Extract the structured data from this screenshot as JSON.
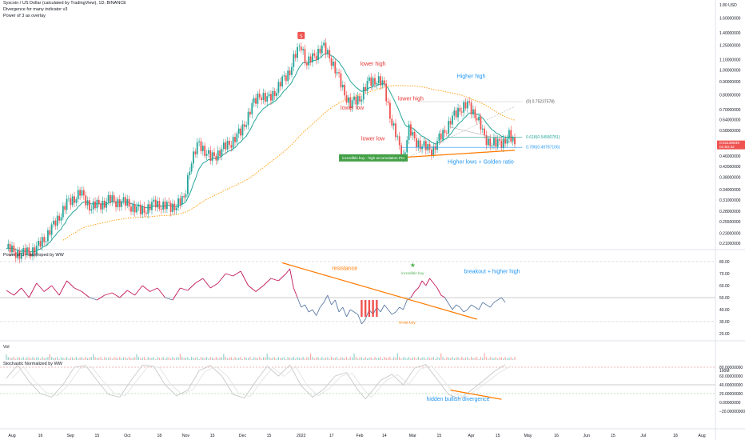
{
  "header": {
    "title": "Syscoin / US Dollar (calculated by TradingView), 1D, BINANCE",
    "line2": "Divergence for many indicator v3",
    "line3": "Power of 3 as overlay"
  },
  "chart_data": [
    {
      "type": "candlestick",
      "title": "Syscoin / US Dollar (calculated by TradingView), 1D, BINANCE",
      "y_scale": "log",
      "y_ticks": [
        "1.80 USD",
        "1.60000000",
        "1.40000000",
        "1.25000000",
        "1.10000000",
        "1.00000000",
        "0.90000000",
        "0.80000000",
        "0.70000000",
        "0.64000000",
        "0.58000000",
        "0.52000000",
        "0.46000000",
        "0.42000000",
        "0.38000000",
        "0.34000000",
        "0.31000000",
        "0.28000000",
        "0.25500000",
        "0.23000000",
        "0.21000000"
      ],
      "y_tick_values": [
        1.8,
        1.6,
        1.4,
        1.25,
        1.1,
        1.0,
        0.9,
        0.8,
        0.7,
        0.64,
        0.58,
        0.52,
        0.46,
        0.42,
        0.38,
        0.34,
        0.31,
        0.28,
        0.255,
        0.23,
        0.21
      ],
      "price_label": "0.51135849",
      "countdown_label": "01:50:32",
      "price_path": [
        [
          "2021-07-29",
          0.2
        ],
        [
          "2021-08-06",
          0.19
        ],
        [
          "2021-08-14",
          0.2
        ],
        [
          "2021-08-22",
          0.24
        ],
        [
          "2021-08-30",
          0.3
        ],
        [
          "2021-09-06",
          0.33
        ],
        [
          "2021-09-12",
          0.29
        ],
        [
          "2021-09-22",
          0.31
        ],
        [
          "2021-10-01",
          0.3
        ],
        [
          "2021-10-08",
          0.28
        ],
        [
          "2021-10-16",
          0.3
        ],
        [
          "2021-10-24",
          0.29
        ],
        [
          "2021-10-31",
          0.31
        ],
        [
          "2021-11-03",
          0.42
        ],
        [
          "2021-11-08",
          0.52
        ],
        [
          "2021-11-14",
          0.45
        ],
        [
          "2021-11-22",
          0.5
        ],
        [
          "2021-11-30",
          0.57
        ],
        [
          "2021-12-06",
          0.72
        ],
        [
          "2021-12-10",
          0.81
        ],
        [
          "2021-12-14",
          0.76
        ],
        [
          "2021-12-20",
          0.86
        ],
        [
          "2021-12-26",
          1.0
        ],
        [
          "2021-12-28",
          1.1
        ],
        [
          "2022-01-01",
          1.26
        ],
        [
          "2022-01-04",
          1.05
        ],
        [
          "2022-01-09",
          1.16
        ],
        [
          "2022-01-12",
          1.24
        ],
        [
          "2022-01-17",
          1.1
        ],
        [
          "2022-01-22",
          0.88
        ],
        [
          "2022-01-27",
          0.73
        ],
        [
          "2022-02-01",
          0.78
        ],
        [
          "2022-02-06",
          0.9
        ],
        [
          "2022-02-10",
          0.92
        ],
        [
          "2022-02-14",
          0.86
        ],
        [
          "2022-02-18",
          0.62
        ],
        [
          "2022-02-22",
          0.5
        ],
        [
          "2022-02-24",
          0.46
        ],
        [
          "2022-02-27",
          0.58
        ],
        [
          "2022-03-01",
          0.55
        ],
        [
          "2022-03-06",
          0.5
        ],
        [
          "2022-03-12",
          0.49
        ],
        [
          "2022-03-16",
          0.55
        ],
        [
          "2022-03-21",
          0.63
        ],
        [
          "2022-03-26",
          0.71
        ],
        [
          "2022-03-30",
          0.73
        ],
        [
          "2022-04-04",
          0.66
        ],
        [
          "2022-04-08",
          0.54
        ],
        [
          "2022-04-14",
          0.51
        ],
        [
          "2022-04-18",
          0.53
        ],
        [
          "2022-04-21",
          0.55
        ],
        [
          "2022-04-24",
          0.51
        ]
      ],
      "levels": [
        {
          "label": "(0) 0.75237578)",
          "value": 0.752
        },
        {
          "label": "0.618(0.54580781)",
          "value": 0.546
        },
        {
          "label": "0.786(0.49787106)",
          "value": 0.498
        }
      ],
      "annotations": [
        {
          "text": "lower high",
          "date": "2022-02-08",
          "value": 1.04,
          "color": "#e53935"
        },
        {
          "text": "Higher high",
          "date": "2022-04-01",
          "value": 0.93,
          "color": "#2196f3"
        },
        {
          "text": "lower high",
          "date": "2022-02-28",
          "value": 0.76,
          "color": "#e53935"
        },
        {
          "text": "lower low",
          "date": "2022-01-28",
          "value": 0.7,
          "color": "#e53935"
        },
        {
          "text": "lower low",
          "date": "2022-02-08",
          "value": 0.53,
          "color": "#e53935"
        },
        {
          "text": "Higher lows + Golden ratio",
          "date": "2022-04-06",
          "value": 0.43,
          "color": "#2196f3"
        }
      ],
      "callout": "incredible buy - high accumulation Pro",
      "signal": "S",
      "x_ticks": [
        "Aug",
        "16",
        "Sep",
        "15",
        "Oct",
        "18",
        "Nov",
        "15",
        "Dec",
        "15",
        "2022",
        "17",
        "Feb",
        "14",
        "Mar",
        "15",
        "Apr",
        "15",
        "May",
        "16",
        "Jun",
        "15",
        "Jul",
        "18",
        "Aug"
      ],
      "x_tick_dates": [
        "2021-08-01",
        "2021-08-16",
        "2021-09-01",
        "2021-09-15",
        "2021-10-01",
        "2021-10-18",
        "2021-11-01",
        "2021-11-15",
        "2021-12-01",
        "2021-12-15",
        "2022-01-01",
        "2022-01-17",
        "2022-02-01",
        "2022-02-14",
        "2022-03-01",
        "2022-03-15",
        "2022-04-01",
        "2022-04-15",
        "2022-05-01",
        "2022-05-16",
        "2022-06-01",
        "2022-06-15",
        "2022-07-01",
        "2022-07-18",
        "2022-08-01"
      ]
    },
    {
      "type": "line",
      "title": "Power of 3 - developed by WW",
      "y_ticks": [
        "80.00",
        "70.00",
        "60.00",
        "50.00",
        "40.00",
        "30.00",
        "20.00"
      ],
      "y_tick_values": [
        80,
        70,
        60,
        50,
        40,
        30,
        20
      ],
      "values": [
        [
          0,
          56
        ],
        [
          4,
          52
        ],
        [
          8,
          58
        ],
        [
          12,
          50
        ],
        [
          16,
          62
        ],
        [
          20,
          55
        ],
        [
          24,
          60
        ],
        [
          28,
          52
        ],
        [
          32,
          64
        ],
        [
          36,
          58
        ],
        [
          40,
          55
        ],
        [
          44,
          50
        ],
        [
          48,
          48
        ],
        [
          52,
          52
        ],
        [
          56,
          54
        ],
        [
          60,
          50
        ],
        [
          64,
          56
        ],
        [
          68,
          52
        ],
        [
          72,
          60
        ],
        [
          76,
          55
        ],
        [
          80,
          58
        ],
        [
          84,
          50
        ],
        [
          88,
          48
        ],
        [
          92,
          58
        ],
        [
          96,
          56
        ],
        [
          100,
          62
        ],
        [
          104,
          66
        ],
        [
          108,
          58
        ],
        [
          112,
          62
        ],
        [
          116,
          70
        ],
        [
          120,
          68
        ],
        [
          124,
          72
        ],
        [
          128,
          60
        ],
        [
          132,
          55
        ],
        [
          136,
          60
        ],
        [
          140,
          66
        ],
        [
          144,
          64
        ],
        [
          148,
          70
        ],
        [
          150,
          74
        ],
        [
          152,
          58
        ],
        [
          154,
          50
        ],
        [
          156,
          42
        ],
        [
          158,
          44
        ],
        [
          160,
          38
        ],
        [
          162,
          40
        ],
        [
          164,
          35
        ],
        [
          166,
          42
        ],
        [
          168,
          46
        ],
        [
          170,
          52
        ],
        [
          172,
          44
        ],
        [
          174,
          48
        ],
        [
          176,
          38
        ],
        [
          178,
          42
        ],
        [
          180,
          34
        ],
        [
          182,
          40
        ],
        [
          184,
          38
        ],
        [
          186,
          36
        ],
        [
          188,
          28
        ],
        [
          190,
          32
        ],
        [
          192,
          40
        ],
        [
          194,
          36
        ],
        [
          196,
          42
        ],
        [
          198,
          38
        ],
        [
          200,
          44
        ],
        [
          202,
          40
        ],
        [
          204,
          36
        ],
        [
          206,
          38
        ],
        [
          208,
          42
        ],
        [
          210,
          40
        ],
        [
          212,
          48
        ],
        [
          214,
          50
        ],
        [
          216,
          55
        ],
        [
          218,
          58
        ],
        [
          220,
          64
        ],
        [
          222,
          60
        ],
        [
          224,
          66
        ],
        [
          226,
          62
        ],
        [
          228,
          58
        ],
        [
          230,
          52
        ],
        [
          232,
          50
        ],
        [
          234,
          45
        ],
        [
          236,
          40
        ],
        [
          238,
          44
        ],
        [
          240,
          42
        ],
        [
          242,
          38
        ],
        [
          244,
          40
        ],
        [
          246,
          44
        ],
        [
          248,
          42
        ],
        [
          250,
          40
        ],
        [
          252,
          46
        ],
        [
          254,
          44
        ],
        [
          256,
          42
        ],
        [
          258,
          46
        ],
        [
          260,
          48
        ],
        [
          262,
          50
        ],
        [
          264,
          46
        ]
      ],
      "annotations": [
        {
          "text": "resistance",
          "color": "#ff7a00"
        },
        {
          "text": "breakout + higher high",
          "color": "#2196f3"
        },
        {
          "text": "incredible buy",
          "color": "#4caf50"
        },
        {
          "text": "Great buy",
          "color": "#ff7a00"
        }
      ]
    },
    {
      "type": "line",
      "title": "Stochastic Normalized by WW",
      "vol_label": "Vol",
      "vol_tick": "100M",
      "y_ticks": [
        "80.00000000",
        "60.00000000",
        "40.00000000",
        "20.00000000",
        "0.00000000",
        "−20.00000000"
      ],
      "y_tick_values": [
        80,
        60,
        40,
        20,
        0,
        -20
      ],
      "values": [
        [
          0,
          55
        ],
        [
          6,
          85
        ],
        [
          12,
          48
        ],
        [
          18,
          20
        ],
        [
          24,
          12
        ],
        [
          30,
          40
        ],
        [
          36,
          80
        ],
        [
          42,
          84
        ],
        [
          48,
          50
        ],
        [
          54,
          18
        ],
        [
          60,
          12
        ],
        [
          66,
          50
        ],
        [
          72,
          85
        ],
        [
          78,
          82
        ],
        [
          84,
          40
        ],
        [
          90,
          15
        ],
        [
          96,
          28
        ],
        [
          102,
          72
        ],
        [
          108,
          84
        ],
        [
          114,
          60
        ],
        [
          120,
          18
        ],
        [
          126,
          10
        ],
        [
          132,
          48
        ],
        [
          138,
          82
        ],
        [
          144,
          60
        ],
        [
          150,
          85
        ],
        [
          156,
          38
        ],
        [
          162,
          12
        ],
        [
          168,
          30
        ],
        [
          174,
          60
        ],
        [
          180,
          68
        ],
        [
          186,
          28
        ],
        [
          190,
          8
        ],
        [
          194,
          28
        ],
        [
          198,
          50
        ],
        [
          204,
          64
        ],
        [
          210,
          40
        ],
        [
          216,
          78
        ],
        [
          222,
          86
        ],
        [
          228,
          52
        ],
        [
          234,
          18
        ],
        [
          240,
          8
        ],
        [
          246,
          28
        ],
        [
          252,
          48
        ],
        [
          258,
          70
        ],
        [
          264,
          86
        ]
      ],
      "annotations": [
        {
          "text": "hidden bullish divergence",
          "color": "#2196f3"
        }
      ]
    }
  ],
  "colors": {
    "up": "#26a69a",
    "down": "#ef5350",
    "ma_fast": "#26a69a",
    "ma_slow": "#ff9800",
    "price_tag": "#ef5350",
    "orange": "#ff7a00",
    "blue": "#2196f3",
    "red": "#e53935",
    "green": "#4caf50",
    "grid": "#e0e3eb",
    "axis_text": "#131722"
  }
}
